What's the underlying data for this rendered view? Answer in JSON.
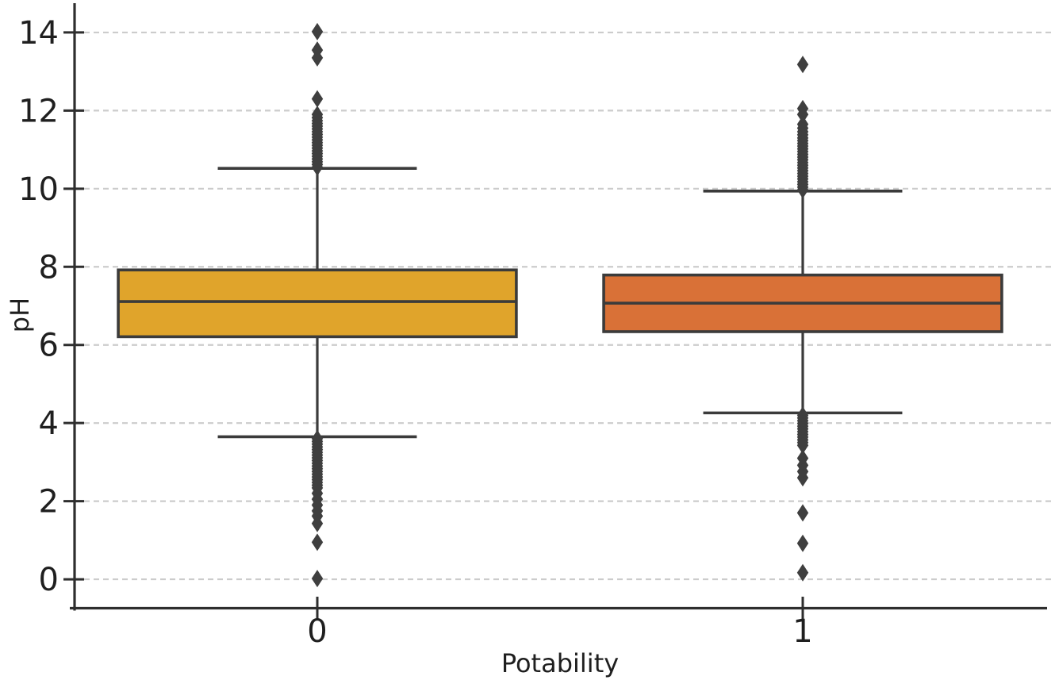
{
  "figure": {
    "background": "#ffffff"
  },
  "chart_data": {
    "type": "boxplot",
    "title": "",
    "xlabel": "Potability",
    "ylabel": "pH",
    "categories": [
      "0",
      "1"
    ],
    "xlim": [
      -0.5,
      1.5
    ],
    "ylim": [
      -0.75,
      14.75
    ],
    "yticks": [
      0,
      2,
      4,
      6,
      8,
      10,
      12,
      14
    ],
    "grid": {
      "axis": "y",
      "style": "dashed",
      "color": "#cccccc"
    },
    "legend": null,
    "style": {
      "box_width": 0.82,
      "cap_width": 0.41,
      "line_color": "#3b3b3b",
      "spine_color": "#2e2e2e",
      "text_color": "#1f1f1f",
      "flier_color": "#3f3f3f"
    },
    "series": [
      {
        "name": "0",
        "x": 0,
        "fill": "#E0A42B",
        "whisker_low": 3.65,
        "q1": 6.21,
        "median": 7.11,
        "q3": 7.92,
        "whisker_high": 10.52,
        "outliers": [
          10.55,
          10.62,
          10.69,
          10.76,
          10.83,
          10.9,
          10.97,
          11.04,
          11.11,
          11.18,
          11.25,
          11.32,
          11.39,
          11.46,
          11.53,
          11.6,
          11.67,
          11.74,
          11.82,
          11.9,
          12.3,
          13.35,
          13.55,
          14.02,
          3.6,
          3.53,
          3.46,
          3.39,
          3.32,
          3.25,
          3.18,
          3.11,
          3.04,
          2.97,
          2.9,
          2.83,
          2.76,
          2.69,
          2.62,
          2.55,
          2.48,
          2.41,
          2.34,
          2.2,
          2.05,
          1.9,
          1.75,
          1.62,
          1.43,
          0.95,
          0.02
        ]
      },
      {
        "name": "1",
        "x": 1,
        "fill": "#D97137",
        "whisker_low": 4.26,
        "q1": 6.34,
        "median": 7.07,
        "q3": 7.79,
        "whisker_high": 9.94,
        "outliers": [
          9.97,
          10.04,
          10.11,
          10.18,
          10.25,
          10.32,
          10.39,
          10.46,
          10.53,
          10.6,
          10.67,
          10.74,
          10.81,
          10.88,
          10.95,
          11.02,
          11.09,
          11.16,
          11.23,
          11.3,
          11.38,
          11.46,
          11.55,
          11.65,
          11.9,
          12.05,
          13.18,
          4.2,
          4.13,
          4.06,
          3.99,
          3.92,
          3.85,
          3.78,
          3.71,
          3.64,
          3.57,
          3.5,
          3.43,
          3.1,
          2.92,
          2.76,
          2.6,
          1.7,
          0.92,
          0.17
        ]
      }
    ]
  }
}
